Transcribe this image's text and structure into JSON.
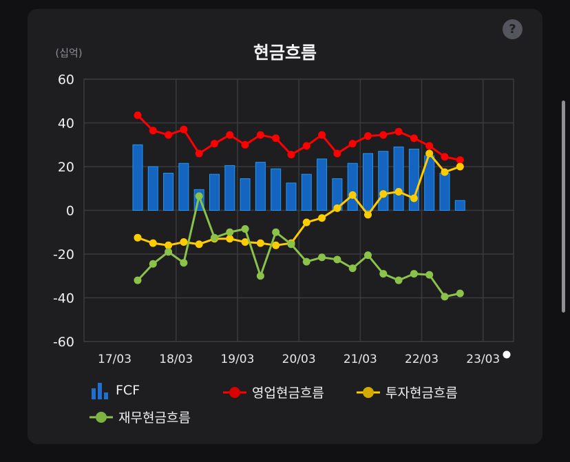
{
  "title": "현금흐름",
  "unit_label": "(십억)",
  "help_icon": "?",
  "colors": {
    "fcf": "#1565c0",
    "fcf_edge": "#2196f3",
    "operating": "#ff0000",
    "investing": "#ffcc00",
    "financing": "#8bc34a",
    "grid": "#3a3a3d"
  },
  "chart_data": {
    "type": "bar+line",
    "title": "현금흐름",
    "ylabel": "(십억)",
    "ylim": [
      -60,
      60
    ],
    "yticks": [
      60,
      40,
      20,
      0,
      -20,
      -40,
      -60
    ],
    "xticks": [
      "17/03",
      "18/03",
      "19/03",
      "20/03",
      "21/03",
      "22/03",
      "23/03"
    ],
    "series": [
      {
        "name": "FCF",
        "type": "bar",
        "values": [
          30,
          20,
          17,
          21.5,
          9.5,
          16.5,
          20.5,
          14.5,
          22,
          19,
          12.5,
          16.5,
          23.5,
          14.5,
          21.5,
          26,
          27,
          29,
          28,
          25,
          17,
          4.5
        ]
      },
      {
        "name": "영업현금흐름",
        "type": "line",
        "values": [
          43.5,
          36.5,
          34.5,
          37,
          26,
          30.5,
          34.5,
          30,
          34.5,
          33,
          25.5,
          29.5,
          34.5,
          26,
          30.5,
          34,
          34.5,
          36,
          33,
          29.5,
          24.5,
          23
        ]
      },
      {
        "name": "투자현금흐름",
        "type": "line",
        "values": [
          -12.5,
          -15,
          -16,
          -14.5,
          -15.5,
          -13,
          -13,
          -14.5,
          -15,
          -16,
          -15,
          -5.5,
          -3.5,
          1,
          7,
          -2,
          7.5,
          8.5,
          5.5,
          26,
          17.5,
          20
        ]
      },
      {
        "name": "재무현금흐름",
        "type": "line",
        "values": [
          -32,
          -24.5,
          -19,
          -24,
          6.5,
          -12.5,
          -10,
          -8.5,
          -30,
          -10,
          -15.5,
          -23.5,
          -21.5,
          -22.5,
          -26.5,
          -20.5,
          -29,
          -32,
          -29,
          -29.5,
          -39.5,
          -38
        ]
      }
    ]
  },
  "legend": [
    {
      "label": "FCF",
      "kind": "bar",
      "color": "#1e6fd0"
    },
    {
      "label": "영업현금흐름",
      "kind": "line",
      "color": "#ff0000"
    },
    {
      "label": "투자현금흐름",
      "kind": "line",
      "color": "#ffcc00"
    },
    {
      "label": "재무현금흐름",
      "kind": "line",
      "color": "#8bc34a"
    }
  ]
}
